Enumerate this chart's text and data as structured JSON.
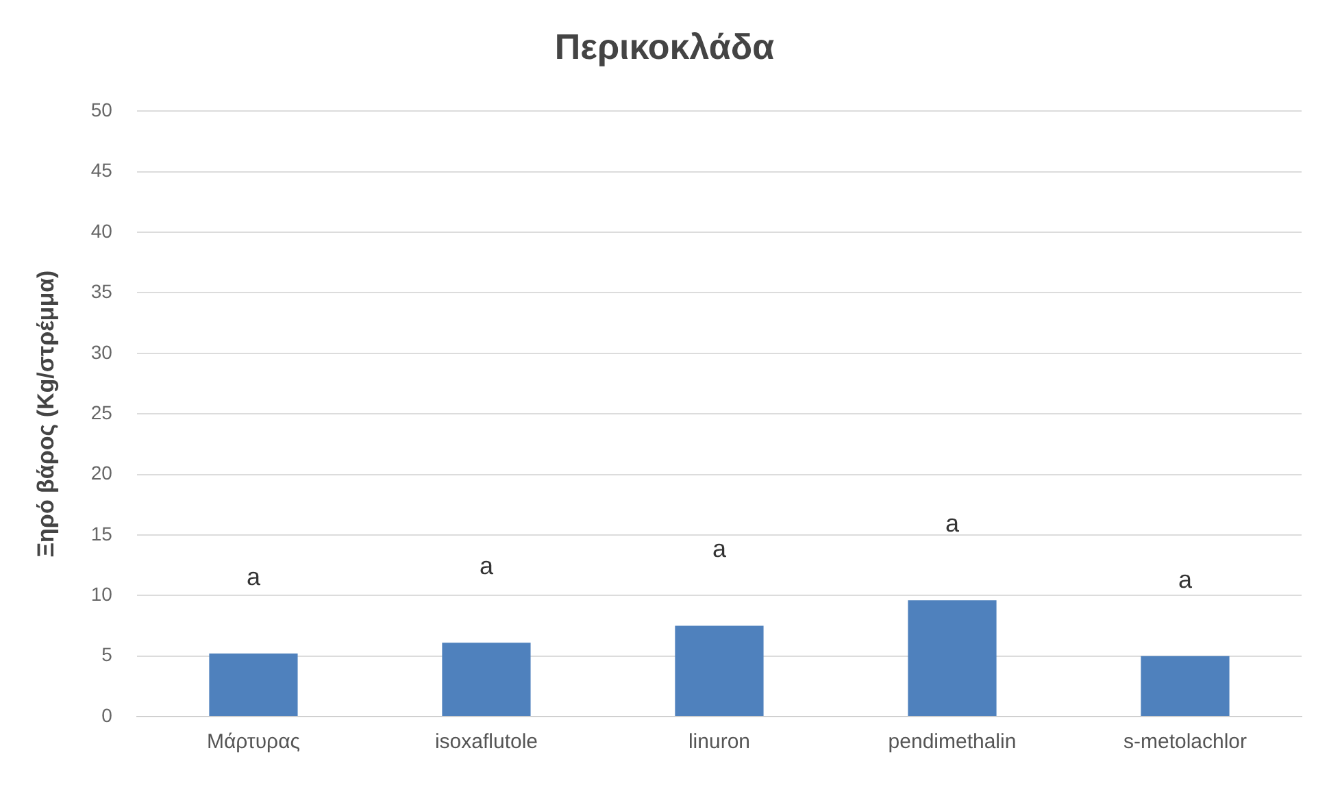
{
  "chart_data": {
    "type": "bar",
    "title": "Περικοκλάδα",
    "ylabel": "Ξηρό βάρος (Kg/στρέμμα)",
    "categories": [
      "Μάρτυρας",
      "isoxaflutole",
      "linuron",
      "pendimethalin",
      "s-metolachlor"
    ],
    "values": [
      5.2,
      6.1,
      7.5,
      9.6,
      5.0
    ],
    "color": "#4f81bd",
    "ylim": [
      0,
      50
    ],
    "yticks": [
      0,
      5,
      10,
      15,
      20,
      25,
      30,
      35,
      40,
      45,
      50
    ],
    "grid": "y",
    "legend": false,
    "annotations": [
      "a",
      "a",
      "a",
      "a",
      "a"
    ]
  }
}
